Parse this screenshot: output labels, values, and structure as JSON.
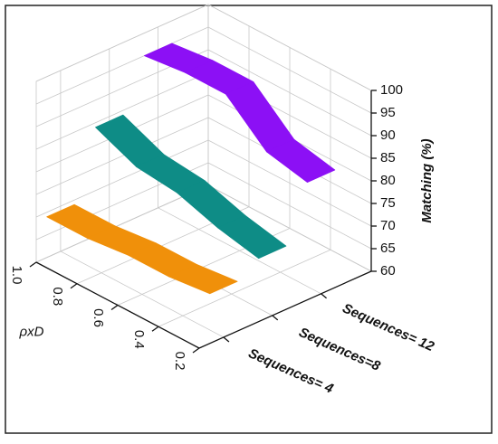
{
  "chart_data": {
    "type": "ribbon3d",
    "x_label": "ρxD",
    "z_label": "Matching (%)",
    "x": [
      0.2,
      0.4,
      0.6,
      0.8,
      1
    ],
    "xlim": [
      0.2,
      1
    ],
    "xticks": [
      0.2,
      0.4,
      0.6,
      0.8,
      {
        "value": 1,
        "label": "1.0"
      }
    ],
    "zlim": [
      60,
      100
    ],
    "zticks": [
      60,
      65,
      70,
      75,
      80,
      85,
      90,
      95,
      100
    ],
    "grid": true,
    "series": [
      {
        "name": "Sequences= 4",
        "color": "#f0900a",
        "values": [
          71,
          70,
          70,
          69,
          69
        ]
      },
      {
        "name": "Sequences=8",
        "color": "#0e8c86",
        "values": [
          74,
          76,
          79,
          80,
          84
        ]
      },
      {
        "name": "Sequences= 12",
        "color": "#8c10f5",
        "values": [
          86,
          88,
          96,
          96,
          95
        ]
      }
    ]
  }
}
